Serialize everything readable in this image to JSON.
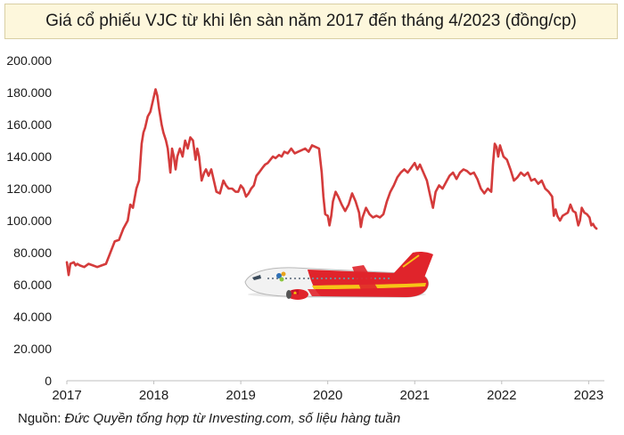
{
  "chart_data": {
    "type": "line",
    "title": "Giá cổ phiếu VJC từ khi lên sàn năm 2017 đến tháng 4/2023 (đồng/cp)",
    "xlabel": "",
    "ylabel": "",
    "xlim": [
      2017,
      2023.15
    ],
    "ylim": [
      0,
      200000
    ],
    "grid": false,
    "legend": "none",
    "line_color": "#d43b3b",
    "x_ticks": [
      "2017",
      "2018",
      "2019",
      "2020",
      "2021",
      "2022",
      "2023"
    ],
    "y_ticks": [
      "0",
      "20.000",
      "40.000",
      "60.000",
      "80.000",
      "100.000",
      "120.000",
      "140.000",
      "160.000",
      "180.000",
      "200.000"
    ],
    "series": [
      {
        "name": "",
        "points": [
          [
            2017.0,
            74000
          ],
          [
            2017.02,
            66000
          ],
          [
            2017.04,
            73000
          ],
          [
            2017.08,
            74000
          ],
          [
            2017.1,
            72000
          ],
          [
            2017.12,
            73000
          ],
          [
            2017.15,
            72000
          ],
          [
            2017.2,
            71000
          ],
          [
            2017.25,
            73000
          ],
          [
            2017.3,
            72000
          ],
          [
            2017.35,
            71000
          ],
          [
            2017.4,
            72000
          ],
          [
            2017.45,
            73000
          ],
          [
            2017.5,
            80000
          ],
          [
            2017.55,
            87000
          ],
          [
            2017.6,
            88000
          ],
          [
            2017.65,
            95000
          ],
          [
            2017.7,
            100000
          ],
          [
            2017.73,
            110000
          ],
          [
            2017.76,
            108000
          ],
          [
            2017.8,
            120000
          ],
          [
            2017.83,
            125000
          ],
          [
            2017.86,
            148000
          ],
          [
            2017.88,
            155000
          ],
          [
            2017.9,
            158000
          ],
          [
            2017.93,
            165000
          ],
          [
            2017.96,
            168000
          ],
          [
            2017.99,
            175000
          ],
          [
            2018.02,
            182000
          ],
          [
            2018.04,
            178000
          ],
          [
            2018.06,
            170000
          ],
          [
            2018.09,
            160000
          ],
          [
            2018.11,
            155000
          ],
          [
            2018.14,
            150000
          ],
          [
            2018.16,
            145000
          ],
          [
            2018.19,
            130000
          ],
          [
            2018.21,
            145000
          ],
          [
            2018.23,
            140000
          ],
          [
            2018.25,
            132000
          ],
          [
            2018.27,
            140000
          ],
          [
            2018.3,
            145000
          ],
          [
            2018.33,
            140000
          ],
          [
            2018.36,
            150000
          ],
          [
            2018.39,
            145000
          ],
          [
            2018.42,
            152000
          ],
          [
            2018.45,
            150000
          ],
          [
            2018.48,
            138000
          ],
          [
            2018.5,
            145000
          ],
          [
            2018.52,
            140000
          ],
          [
            2018.55,
            125000
          ],
          [
            2018.58,
            130000
          ],
          [
            2018.6,
            132000
          ],
          [
            2018.63,
            128000
          ],
          [
            2018.66,
            132000
          ],
          [
            2018.69,
            125000
          ],
          [
            2018.72,
            118000
          ],
          [
            2018.76,
            117000
          ],
          [
            2018.8,
            125000
          ],
          [
            2018.83,
            122000
          ],
          [
            2018.86,
            120000
          ],
          [
            2018.9,
            120000
          ],
          [
            2018.94,
            118000
          ],
          [
            2018.97,
            118000
          ],
          [
            2019.0,
            122000
          ],
          [
            2019.03,
            120000
          ],
          [
            2019.06,
            115000
          ],
          [
            2019.09,
            117000
          ],
          [
            2019.12,
            120000
          ],
          [
            2019.15,
            122000
          ],
          [
            2019.18,
            128000
          ],
          [
            2019.21,
            130000
          ],
          [
            2019.25,
            133000
          ],
          [
            2019.28,
            135000
          ],
          [
            2019.31,
            136000
          ],
          [
            2019.34,
            138000
          ],
          [
            2019.37,
            140000
          ],
          [
            2019.4,
            139000
          ],
          [
            2019.44,
            141000
          ],
          [
            2019.47,
            140000
          ],
          [
            2019.5,
            143000
          ],
          [
            2019.54,
            142000
          ],
          [
            2019.58,
            145000
          ],
          [
            2019.62,
            142000
          ],
          [
            2019.66,
            143000
          ],
          [
            2019.7,
            144000
          ],
          [
            2019.74,
            145000
          ],
          [
            2019.78,
            143000
          ],
          [
            2019.82,
            147000
          ],
          [
            2019.86,
            146000
          ],
          [
            2019.9,
            145000
          ],
          [
            2019.93,
            130000
          ],
          [
            2019.95,
            115000
          ],
          [
            2019.97,
            104000
          ],
          [
            2020.0,
            103000
          ],
          [
            2020.02,
            97000
          ],
          [
            2020.04,
            103000
          ],
          [
            2020.06,
            112000
          ],
          [
            2020.09,
            118000
          ],
          [
            2020.12,
            115000
          ],
          [
            2020.16,
            110000
          ],
          [
            2020.2,
            106000
          ],
          [
            2020.24,
            110000
          ],
          [
            2020.28,
            117000
          ],
          [
            2020.32,
            112000
          ],
          [
            2020.36,
            105000
          ],
          [
            2020.38,
            96000
          ],
          [
            2020.4,
            102000
          ],
          [
            2020.44,
            108000
          ],
          [
            2020.48,
            104000
          ],
          [
            2020.52,
            102000
          ],
          [
            2020.56,
            103000
          ],
          [
            2020.6,
            102000
          ],
          [
            2020.64,
            104000
          ],
          [
            2020.68,
            112000
          ],
          [
            2020.72,
            118000
          ],
          [
            2020.76,
            122000
          ],
          [
            2020.8,
            127000
          ],
          [
            2020.84,
            130000
          ],
          [
            2020.88,
            132000
          ],
          [
            2020.92,
            130000
          ],
          [
            2020.96,
            133000
          ],
          [
            2021.0,
            136000
          ],
          [
            2021.03,
            132000
          ],
          [
            2021.06,
            135000
          ],
          [
            2021.1,
            130000
          ],
          [
            2021.14,
            125000
          ],
          [
            2021.18,
            115000
          ],
          [
            2021.21,
            108000
          ],
          [
            2021.24,
            118000
          ],
          [
            2021.28,
            122000
          ],
          [
            2021.32,
            120000
          ],
          [
            2021.36,
            124000
          ],
          [
            2021.4,
            128000
          ],
          [
            2021.44,
            130000
          ],
          [
            2021.48,
            126000
          ],
          [
            2021.52,
            130000
          ],
          [
            2021.56,
            132000
          ],
          [
            2021.6,
            131000
          ],
          [
            2021.64,
            129000
          ],
          [
            2021.68,
            130000
          ],
          [
            2021.72,
            126000
          ],
          [
            2021.76,
            120000
          ],
          [
            2021.8,
            117000
          ],
          [
            2021.84,
            120000
          ],
          [
            2021.88,
            118000
          ],
          [
            2021.9,
            135000
          ],
          [
            2021.92,
            148000
          ],
          [
            2021.94,
            146000
          ],
          [
            2021.96,
            140000
          ],
          [
            2021.98,
            147000
          ],
          [
            2022.02,
            140000
          ],
          [
            2022.06,
            138000
          ],
          [
            2022.1,
            132000
          ],
          [
            2022.14,
            125000
          ],
          [
            2022.18,
            127000
          ],
          [
            2022.22,
            130000
          ],
          [
            2022.26,
            128000
          ],
          [
            2022.3,
            130000
          ],
          [
            2022.34,
            125000
          ],
          [
            2022.38,
            126000
          ],
          [
            2022.42,
            123000
          ],
          [
            2022.46,
            125000
          ],
          [
            2022.5,
            120000
          ],
          [
            2022.54,
            118000
          ],
          [
            2022.58,
            115000
          ],
          [
            2022.6,
            103000
          ],
          [
            2022.62,
            107000
          ],
          [
            2022.64,
            103000
          ],
          [
            2022.67,
            100000
          ],
          [
            2022.7,
            103000
          ],
          [
            2022.73,
            104000
          ],
          [
            2022.76,
            105000
          ],
          [
            2022.79,
            110000
          ],
          [
            2022.82,
            106000
          ],
          [
            2022.85,
            105000
          ],
          [
            2022.88,
            97000
          ],
          [
            2022.9,
            100000
          ],
          [
            2022.92,
            108000
          ],
          [
            2022.95,
            105000
          ],
          [
            2022.98,
            104000
          ],
          [
            2023.01,
            102000
          ],
          [
            2023.03,
            97000
          ],
          [
            2023.05,
            98000
          ],
          [
            2023.07,
            96000
          ],
          [
            2023.09,
            95000
          ]
        ]
      }
    ]
  },
  "source": {
    "label": "Nguồn: ",
    "note": "Đức Quyền tổng hợp từ Investing.com, số liệu hàng tuần"
  }
}
